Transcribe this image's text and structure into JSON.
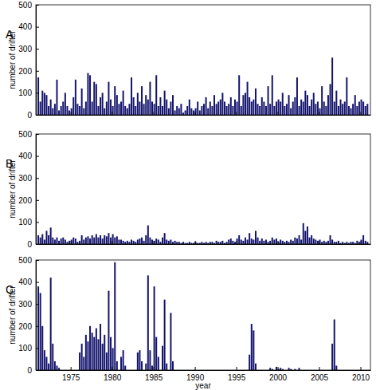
{
  "chart_data": [
    {
      "type": "bar",
      "title": "A",
      "ylabel": "number of drifter",
      "color": "#14146e",
      "grid": false,
      "tick_labels": "y",
      "xlim": [
        1970.8,
        2011.2
      ],
      "xticks": [
        1975,
        1980,
        1985,
        1990,
        1995,
        2000,
        2005,
        2010
      ],
      "ylim": [
        0,
        500
      ],
      "yticks": [
        0,
        100,
        200,
        300,
        400,
        500
      ],
      "x": [
        1971,
        1971.25,
        1971.5,
        1971.75,
        1972,
        1972.25,
        1972.5,
        1972.75,
        1973,
        1973.25,
        1973.5,
        1973.75,
        1974,
        1974.25,
        1974.5,
        1974.75,
        1975,
        1975.25,
        1975.5,
        1975.75,
        1976,
        1976.25,
        1976.5,
        1976.75,
        1977,
        1977.25,
        1977.5,
        1977.75,
        1978,
        1978.25,
        1978.5,
        1978.75,
        1979,
        1979.25,
        1979.5,
        1979.75,
        1980,
        1980.25,
        1980.5,
        1980.75,
        1981,
        1981.25,
        1981.5,
        1981.75,
        1982,
        1982.25,
        1982.5,
        1982.75,
        1983,
        1983.25,
        1983.5,
        1983.75,
        1984,
        1984.25,
        1984.5,
        1984.75,
        1985,
        1985.25,
        1985.5,
        1985.75,
        1986,
        1986.25,
        1986.5,
        1986.75,
        1987,
        1987.25,
        1987.5,
        1987.75,
        1988,
        1988.25,
        1988.5,
        1988.75,
        1989,
        1989.25,
        1989.5,
        1989.75,
        1990,
        1990.25,
        1990.5,
        1990.75,
        1991,
        1991.25,
        1991.5,
        1991.75,
        1992,
        1992.25,
        1992.5,
        1992.75,
        1993,
        1993.25,
        1993.5,
        1993.75,
        1994,
        1994.25,
        1994.5,
        1994.75,
        1995,
        1995.25,
        1995.5,
        1995.75,
        1996,
        1996.25,
        1996.5,
        1996.75,
        1997,
        1997.25,
        1997.5,
        1997.75,
        1998,
        1998.25,
        1998.5,
        1998.75,
        1999,
        1999.25,
        1999.5,
        1999.75,
        2000,
        2000.25,
        2000.5,
        2000.75,
        2001,
        2001.25,
        2001.5,
        2001.75,
        2002,
        2002.25,
        2002.5,
        2002.75,
        2003,
        2003.25,
        2003.5,
        2003.75,
        2004,
        2004.25,
        2004.5,
        2004.75,
        2005,
        2005.25,
        2005.5,
        2005.75,
        2006,
        2006.25,
        2006.5,
        2006.75,
        2007,
        2007.25,
        2007.5,
        2007.75,
        2008,
        2008.25,
        2008.5,
        2008.75,
        2009,
        2009.25,
        2009.5,
        2009.75,
        2010,
        2010.25,
        2010.5,
        2010.75
      ],
      "values": [
        170,
        60,
        110,
        100,
        90,
        40,
        70,
        30,
        50,
        160,
        20,
        40,
        60,
        100,
        40,
        20,
        30,
        80,
        160,
        50,
        40,
        120,
        30,
        60,
        190,
        180,
        60,
        150,
        140,
        40,
        80,
        100,
        30,
        60,
        150,
        70,
        40,
        130,
        90,
        50,
        60,
        110,
        40,
        30,
        50,
        170,
        80,
        40,
        100,
        60,
        130,
        50,
        90,
        70,
        150,
        60,
        50,
        180,
        40,
        80,
        40,
        110,
        70,
        30,
        60,
        90,
        20,
        40,
        30,
        50,
        10,
        20,
        40,
        70,
        30,
        20,
        30,
        60,
        20,
        40,
        50,
        80,
        30,
        60,
        40,
        90,
        50,
        60,
        70,
        100,
        60,
        40,
        50,
        80,
        40,
        70,
        60,
        180,
        40,
        90,
        100,
        150,
        80,
        60,
        70,
        120,
        50,
        40,
        80,
        60,
        40,
        130,
        50,
        180,
        40,
        60,
        70,
        60,
        100,
        40,
        50,
        90,
        30,
        60,
        80,
        170,
        40,
        70,
        60,
        110,
        90,
        40,
        70,
        100,
        50,
        60,
        30,
        130,
        60,
        40,
        90,
        140,
        260,
        60,
        110,
        40,
        70,
        50,
        60,
        170,
        40,
        30,
        50,
        90,
        40,
        60,
        70,
        60,
        40,
        50
      ]
    },
    {
      "type": "bar",
      "title": "B",
      "ylabel": "number of drifter",
      "color": "#14146e",
      "grid": false,
      "tick_labels": "y",
      "xlim": [
        1970.8,
        2011.2
      ],
      "xticks": [
        1975,
        1980,
        1985,
        1990,
        1995,
        2000,
        2005,
        2010
      ],
      "ylim": [
        0,
        500
      ],
      "yticks": [
        0,
        100,
        200,
        300,
        400,
        500
      ],
      "x": [
        1971,
        1971.25,
        1971.5,
        1971.75,
        1972,
        1972.25,
        1972.5,
        1972.75,
        1973,
        1973.25,
        1973.5,
        1973.75,
        1974,
        1974.25,
        1974.5,
        1974.75,
        1975,
        1975.25,
        1975.5,
        1975.75,
        1976,
        1976.25,
        1976.5,
        1976.75,
        1977,
        1977.25,
        1977.5,
        1977.75,
        1978,
        1978.25,
        1978.5,
        1978.75,
        1979,
        1979.25,
        1979.5,
        1979.75,
        1980,
        1980.25,
        1980.5,
        1980.75,
        1981,
        1981.25,
        1981.5,
        1981.75,
        1982,
        1982.25,
        1982.5,
        1982.75,
        1983,
        1983.25,
        1983.5,
        1983.75,
        1984,
        1984.25,
        1984.5,
        1984.75,
        1985,
        1985.25,
        1985.5,
        1985.75,
        1986,
        1986.25,
        1986.5,
        1986.75,
        1987,
        1987.25,
        1987.5,
        1987.75,
        1988,
        1988.25,
        1988.5,
        1988.75,
        1989,
        1989.25,
        1989.5,
        1989.75,
        1990,
        1990.25,
        1990.5,
        1990.75,
        1991,
        1991.25,
        1991.5,
        1991.75,
        1992,
        1992.25,
        1992.5,
        1992.75,
        1993,
        1993.25,
        1993.5,
        1993.75,
        1994,
        1994.25,
        1994.5,
        1994.75,
        1995,
        1995.25,
        1995.5,
        1995.75,
        1996,
        1996.25,
        1996.5,
        1996.75,
        1997,
        1997.25,
        1997.5,
        1997.75,
        1998,
        1998.25,
        1998.5,
        1998.75,
        1999,
        1999.25,
        1999.5,
        1999.75,
        2000,
        2000.25,
        2000.5,
        2000.75,
        2001,
        2001.25,
        2001.5,
        2001.75,
        2002,
        2002.25,
        2002.5,
        2002.75,
        2003,
        2003.25,
        2003.5,
        2003.75,
        2004,
        2004.25,
        2004.5,
        2004.75,
        2005,
        2005.25,
        2005.5,
        2005.75,
        2006,
        2006.25,
        2006.5,
        2006.75,
        2007,
        2007.25,
        2007.5,
        2007.75,
        2008,
        2008.25,
        2008.5,
        2008.75,
        2009,
        2009.25,
        2009.5,
        2009.75,
        2010,
        2010.25,
        2010.5,
        2010.75
      ],
      "values": [
        40,
        30,
        45,
        20,
        60,
        40,
        75,
        30,
        20,
        30,
        15,
        25,
        30,
        20,
        10,
        15,
        20,
        30,
        25,
        10,
        15,
        40,
        20,
        30,
        35,
        25,
        40,
        30,
        45,
        30,
        40,
        25,
        40,
        35,
        50,
        30,
        45,
        30,
        35,
        20,
        20,
        15,
        10,
        15,
        10,
        20,
        15,
        10,
        20,
        25,
        30,
        15,
        40,
        85,
        30,
        20,
        15,
        25,
        20,
        10,
        30,
        50,
        20,
        15,
        20,
        10,
        15,
        10,
        10,
        5,
        10,
        5,
        5,
        10,
        5,
        5,
        10,
        5,
        5,
        10,
        5,
        10,
        5,
        10,
        10,
        5,
        15,
        10,
        10,
        15,
        5,
        10,
        20,
        25,
        15,
        10,
        25,
        40,
        20,
        15,
        30,
        20,
        50,
        25,
        20,
        60,
        30,
        15,
        25,
        15,
        20,
        10,
        15,
        30,
        20,
        25,
        10,
        20,
        15,
        10,
        15,
        10,
        20,
        15,
        30,
        25,
        40,
        20,
        95,
        60,
        80,
        30,
        40,
        25,
        20,
        15,
        20,
        10,
        15,
        10,
        15,
        40,
        20,
        10,
        10,
        15,
        5,
        10,
        5,
        10,
        5,
        10,
        10,
        5,
        15,
        10,
        20,
        40,
        15,
        10
      ]
    },
    {
      "type": "bar",
      "title": "C",
      "ylabel": "number of drifter",
      "xlabel": "year",
      "color": "#14146e",
      "grid": false,
      "xlim": [
        1970.8,
        2011.2
      ],
      "xticks": [
        1975,
        1980,
        1985,
        1990,
        1995,
        2000,
        2005,
        2010
      ],
      "ylim": [
        0,
        500
      ],
      "yticks": [
        0,
        100,
        200,
        300,
        400,
        500
      ],
      "x": [
        1971,
        1971.25,
        1971.5,
        1971.75,
        1972,
        1972.25,
        1972.5,
        1972.75,
        1973,
        1973.25,
        1973.5,
        1973.75,
        1974,
        1974.25,
        1974.5,
        1974.75,
        1975,
        1975.25,
        1975.5,
        1975.75,
        1976,
        1976.25,
        1976.5,
        1976.75,
        1977,
        1977.25,
        1977.5,
        1977.75,
        1978,
        1978.25,
        1978.5,
        1978.75,
        1979,
        1979.25,
        1979.5,
        1979.75,
        1980,
        1980.25,
        1980.5,
        1980.75,
        1981,
        1981.25,
        1981.5,
        1981.75,
        1982,
        1982.25,
        1982.5,
        1982.75,
        1983,
        1983.25,
        1983.5,
        1983.75,
        1984,
        1984.25,
        1984.5,
        1984.75,
        1985,
        1985.25,
        1985.5,
        1985.75,
        1986,
        1986.25,
        1986.5,
        1986.75,
        1987,
        1987.25,
        1987.5,
        1987.75,
        1988,
        1988.25,
        1988.5,
        1988.75,
        1989,
        1989.25,
        1989.5,
        1989.75,
        1990,
        1990.25,
        1990.5,
        1990.75,
        1991,
        1991.25,
        1991.5,
        1991.75,
        1992,
        1992.25,
        1992.5,
        1992.75,
        1993,
        1993.25,
        1993.5,
        1993.75,
        1994,
        1994.25,
        1994.5,
        1994.75,
        1995,
        1995.25,
        1995.5,
        1995.75,
        1996,
        1996.25,
        1996.5,
        1996.75,
        1997,
        1997.25,
        1997.5,
        1997.75,
        1998,
        1998.25,
        1998.5,
        1998.75,
        1999,
        1999.25,
        1999.5,
        1999.75,
        2000,
        2000.25,
        2000.5,
        2000.75,
        2001,
        2001.25,
        2001.5,
        2001.75,
        2002,
        2002.25,
        2002.5,
        2002.75,
        2003,
        2003.25,
        2003.5,
        2003.75,
        2004,
        2004.25,
        2004.5,
        2004.75,
        2005,
        2005.25,
        2005.5,
        2005.75,
        2006,
        2006.25,
        2006.5,
        2006.75,
        2007,
        2007.25,
        2007.5,
        2007.75,
        2008,
        2008.25,
        2008.5,
        2008.75,
        2009,
        2009.25,
        2009.5,
        2009.75,
        2010,
        2010.25,
        2010.5,
        2010.75
      ],
      "values": [
        380,
        350,
        200,
        90,
        60,
        30,
        420,
        120,
        40,
        20,
        10,
        0,
        0,
        0,
        0,
        0,
        0,
        0,
        0,
        0,
        80,
        120,
        60,
        160,
        130,
        200,
        170,
        150,
        190,
        140,
        210,
        120,
        160,
        80,
        360,
        150,
        100,
        490,
        40,
        0,
        60,
        90,
        20,
        0,
        0,
        0,
        0,
        0,
        80,
        90,
        40,
        0,
        30,
        430,
        90,
        20,
        380,
        150,
        60,
        0,
        110,
        320,
        30,
        0,
        260,
        40,
        0,
        0,
        0,
        0,
        0,
        0,
        0,
        0,
        0,
        0,
        0,
        0,
        0,
        0,
        0,
        0,
        0,
        0,
        0,
        0,
        0,
        0,
        0,
        0,
        0,
        0,
        0,
        0,
        0,
        0,
        0,
        0,
        0,
        0,
        0,
        0,
        70,
        210,
        180,
        30,
        0,
        0,
        0,
        0,
        0,
        0,
        10,
        5,
        0,
        15,
        5,
        10,
        5,
        0,
        0,
        10,
        5,
        0,
        5,
        0,
        10,
        0,
        0,
        0,
        0,
        0,
        0,
        0,
        0,
        0,
        0,
        0,
        0,
        0,
        0,
        0,
        120,
        230,
        20,
        0,
        0,
        0,
        0,
        0,
        0,
        0,
        0,
        0,
        0,
        0,
        0,
        0,
        0,
        0
      ]
    }
  ]
}
